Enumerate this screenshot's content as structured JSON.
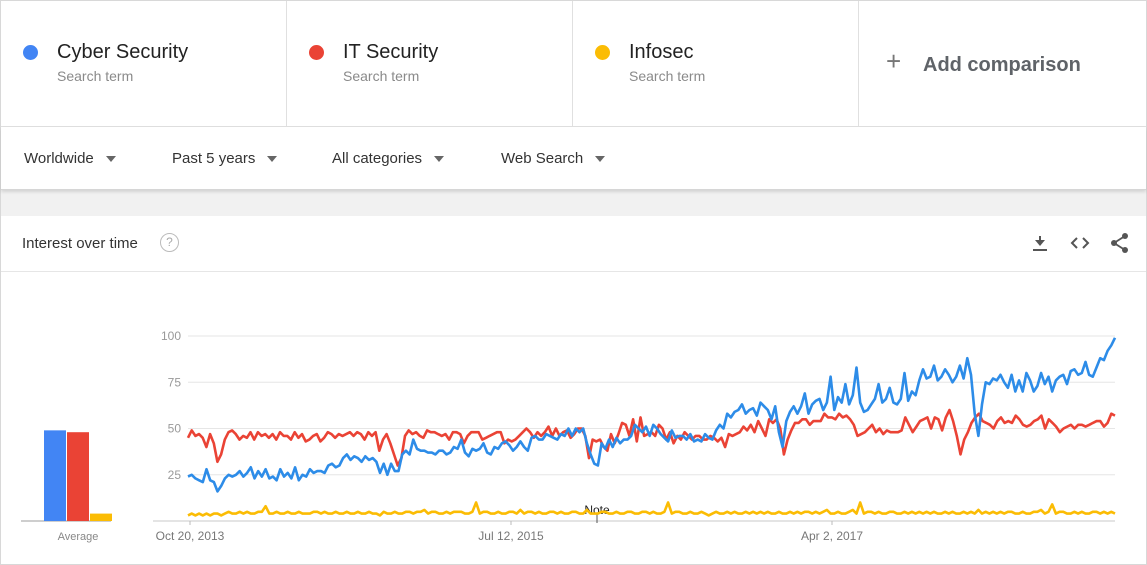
{
  "terms": [
    {
      "name": "Cyber Security",
      "sub": "Search term",
      "color": "#4285f4"
    },
    {
      "name": "IT Security",
      "sub": "Search term",
      "color": "#ea4335"
    },
    {
      "name": "Infosec",
      "sub": "Search term",
      "color": "#fbbc04"
    }
  ],
  "add_comparison": "Add comparison",
  "filters": {
    "region": "Worldwide",
    "time": "Past 5 years",
    "category": "All categories",
    "search_type": "Web Search"
  },
  "card": {
    "title": "Interest over time",
    "help_glyph": "?"
  },
  "chart_data": {
    "type": "line",
    "x_labels": [
      "Oct 20, 2013",
      "Jul 12, 2015",
      "Apr 2, 2017"
    ],
    "y_ticks": [
      25,
      50,
      75,
      100
    ],
    "ylim": [
      0,
      100
    ],
    "note_label": "Note",
    "average_label": "Average",
    "averages": [
      {
        "name": "Cyber Security",
        "value": 49,
        "color": "#4285f4"
      },
      {
        "name": "IT Security",
        "value": 48,
        "color": "#ea4335"
      },
      {
        "name": "Infosec",
        "value": 4,
        "color": "#fbbc04"
      }
    ],
    "series": [
      {
        "name": "Cyber Security",
        "color": "#2d8ce8",
        "values": [
          24,
          25,
          23,
          22,
          21,
          28,
          22,
          21,
          16,
          19,
          23,
          25,
          24,
          25,
          27,
          24,
          26,
          29,
          23,
          27,
          24,
          28,
          23,
          24,
          22,
          28,
          24,
          26,
          23,
          29,
          22,
          25,
          24,
          28,
          26,
          27,
          27,
          26,
          30,
          31,
          29,
          30,
          34,
          36,
          33,
          35,
          34,
          32,
          35,
          33,
          34,
          32,
          26,
          31,
          25,
          31,
          27,
          27,
          36,
          38,
          36,
          44,
          39,
          38,
          38,
          37,
          37,
          36,
          38,
          38,
          36,
          37,
          40,
          39,
          44,
          37,
          35,
          39,
          38,
          39,
          42,
          37,
          36,
          40,
          39,
          42,
          43,
          41,
          38,
          40,
          43,
          40,
          38,
          45,
          46,
          44,
          44,
          47,
          46,
          45,
          44,
          47,
          46,
          50,
          46,
          50,
          48,
          50,
          42,
          36,
          31,
          30,
          42,
          39,
          44,
          40,
          45,
          42,
          44,
          44,
          46,
          52,
          50,
          48,
          51,
          46,
          52,
          50,
          47,
          45,
          43,
          49,
          45,
          46,
          46,
          44,
          47,
          43,
          44,
          43,
          47,
          45,
          44,
          49,
          52,
          50,
          58,
          56,
          59,
          60,
          63,
          58,
          60,
          61,
          57,
          64,
          62,
          60,
          55,
          62,
          48,
          40,
          54,
          59,
          62,
          58,
          62,
          69,
          58,
          63,
          65,
          66,
          60,
          64,
          78,
          60,
          67,
          64,
          74,
          63,
          68,
          83,
          64,
          59,
          60,
          63,
          66,
          74,
          64,
          66,
          72,
          64,
          63,
          66,
          80,
          65,
          70,
          68,
          76,
          82,
          77,
          78,
          84,
          76,
          78,
          82,
          79,
          75,
          78,
          84,
          77,
          88,
          79,
          58,
          46,
          63,
          75,
          74,
          77,
          76,
          79,
          75,
          72,
          79,
          70,
          76,
          70,
          80,
          76,
          70,
          73,
          80,
          74,
          78,
          70,
          76,
          78,
          79,
          74,
          81,
          82,
          79,
          80,
          86,
          79,
          78,
          83,
          88,
          87,
          92,
          95,
          99
        ]
      },
      {
        "name": "IT Security",
        "color": "#ea4335",
        "values": [
          45,
          49,
          46,
          47,
          45,
          40,
          47,
          42,
          32,
          36,
          44,
          48,
          49,
          47,
          44,
          46,
          45,
          48,
          44,
          48,
          46,
          47,
          45,
          47,
          44,
          48,
          46,
          46,
          44,
          48,
          45,
          47,
          43,
          44,
          46,
          47,
          43,
          45,
          48,
          47,
          45,
          47,
          46,
          47,
          48,
          46,
          48,
          47,
          44,
          48,
          46,
          48,
          38,
          44,
          47,
          42,
          36,
          30,
          34,
          46,
          49,
          47,
          48,
          46,
          45,
          49,
          48,
          48,
          47,
          46,
          47,
          44,
          48,
          48,
          47,
          42,
          46,
          48,
          48,
          48,
          44,
          45,
          46,
          47,
          48,
          48,
          42,
          44,
          43,
          44,
          46,
          48,
          50,
          48,
          45,
          48,
          46,
          48,
          51,
          46,
          50,
          46,
          48,
          49,
          45,
          47,
          50,
          50,
          46,
          34,
          44,
          43,
          44,
          40,
          38,
          47,
          42,
          47,
          53,
          52,
          46,
          55,
          43,
          56,
          46,
          47,
          48,
          46,
          52,
          50,
          44,
          48,
          42,
          46,
          44,
          48,
          46,
          44,
          46,
          46,
          44,
          44,
          46,
          45,
          43,
          45,
          40,
          47,
          46,
          47,
          48,
          51,
          49,
          52,
          48,
          54,
          50,
          46,
          55,
          53,
          55,
          50,
          36,
          44,
          49,
          53,
          53,
          55,
          55,
          52,
          54,
          54,
          54,
          58,
          56,
          56,
          55,
          58,
          56,
          57,
          55,
          52,
          46,
          47,
          48,
          50,
          52,
          48,
          50,
          47,
          49,
          48,
          48,
          48,
          49,
          56,
          52,
          48,
          51,
          54,
          55,
          56,
          50,
          56,
          55,
          49,
          56,
          60,
          54,
          46,
          36,
          44,
          48,
          53,
          56,
          58,
          54,
          53,
          52,
          50,
          54,
          56,
          53,
          54,
          53,
          57,
          55,
          52,
          51,
          52,
          54,
          55,
          57,
          50,
          55,
          53,
          51,
          48,
          50,
          51,
          52,
          50,
          52,
          52,
          51,
          52,
          53,
          54,
          54,
          51,
          53,
          58,
          57
        ]
      },
      {
        "name": "Infosec",
        "color": "#fbbc04",
        "values": [
          3,
          4,
          3,
          4,
          3,
          4,
          3,
          4,
          4,
          3,
          4,
          5,
          4,
          4,
          5,
          4,
          5,
          4,
          4,
          5,
          5,
          8,
          4,
          4,
          5,
          4,
          4,
          5,
          4,
          4,
          5,
          4,
          4,
          4,
          5,
          5,
          4,
          5,
          4,
          4,
          5,
          4,
          4,
          5,
          4,
          4,
          5,
          4,
          4,
          5,
          4,
          4,
          3,
          5,
          4,
          4,
          5,
          4,
          4,
          5,
          5,
          4,
          5,
          5,
          6,
          4,
          5,
          5,
          4,
          4,
          5,
          4,
          5,
          5,
          5,
          4,
          4,
          5,
          10,
          4,
          5,
          5,
          4,
          4,
          5,
          4,
          4,
          5,
          5,
          4,
          6,
          4,
          5,
          5,
          4,
          5,
          4,
          4,
          5,
          5,
          4,
          5,
          4,
          4,
          5,
          5,
          4,
          4,
          6,
          4,
          4,
          4,
          5,
          5,
          4,
          4,
          5,
          4,
          4,
          5,
          5,
          4,
          4,
          5,
          5,
          4,
          5,
          4,
          4,
          5,
          10,
          4,
          5,
          5,
          4,
          4,
          5,
          4,
          4,
          5,
          4,
          3,
          4,
          5,
          4,
          4,
          5,
          4,
          5,
          4,
          4,
          5,
          4,
          5,
          4,
          5,
          4,
          5,
          4,
          4,
          5,
          4,
          4,
          5,
          4,
          5,
          4,
          5,
          5,
          4,
          5,
          4,
          5,
          6,
          4,
          4,
          5,
          4,
          4,
          5,
          6,
          4,
          10,
          4,
          5,
          5,
          4,
          5,
          4,
          4,
          5,
          5,
          4,
          4,
          5,
          4,
          5,
          4,
          5,
          4,
          5,
          4,
          5,
          4,
          4,
          5,
          4,
          5,
          4,
          4,
          5,
          4,
          5,
          4,
          6,
          4,
          5,
          4,
          5,
          4,
          5,
          4,
          5,
          5,
          4,
          4,
          5,
          4,
          4,
          5,
          5,
          6,
          4,
          5,
          9,
          4,
          5,
          5,
          4,
          4,
          5,
          4,
          5,
          4,
          4,
          5,
          5,
          4,
          5,
          4,
          5,
          4
        ]
      }
    ]
  }
}
